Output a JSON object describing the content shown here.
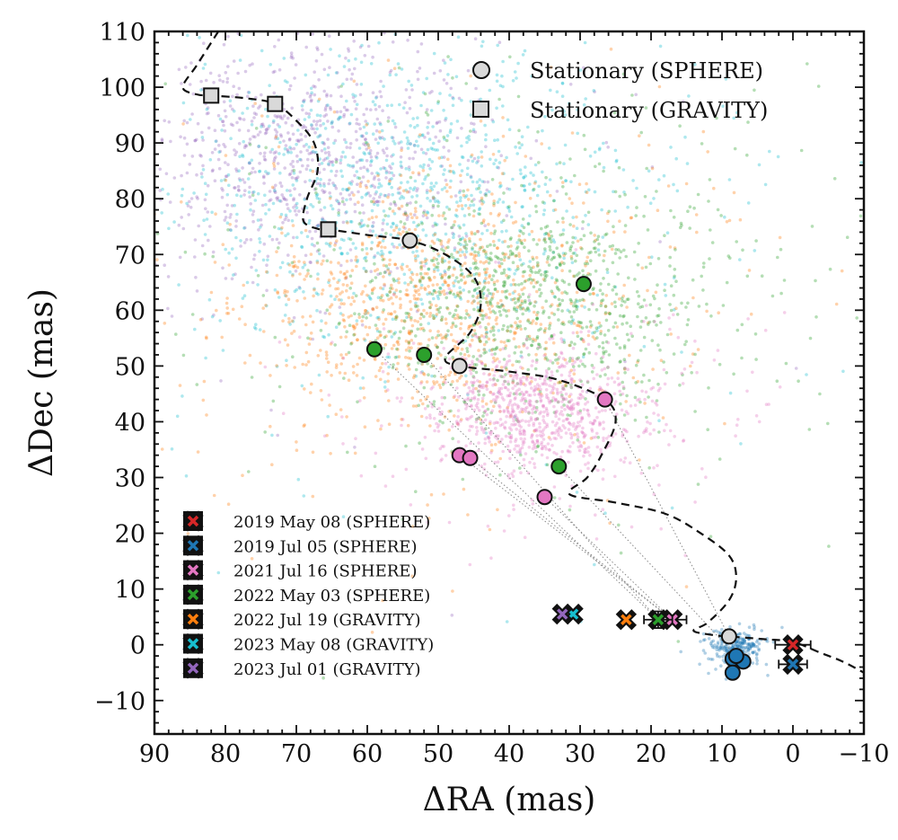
{
  "chart_data": {
    "type": "scatter",
    "xlabel": "ΔRA (mas)",
    "ylabel": "ΔDec (mas)",
    "xlim": [
      90,
      -10
    ],
    "ylim": [
      -16,
      110
    ],
    "xticks": [
      90,
      80,
      70,
      60,
      50,
      40,
      30,
      20,
      10,
      0,
      -10
    ],
    "yticks": [
      110,
      100,
      90,
      80,
      70,
      60,
      50,
      40,
      30,
      20,
      10,
      0,
      -10
    ],
    "grid": false,
    "colors": {
      "red": "#d62728",
      "blue": "#1f77b4",
      "pink": "#e377c2",
      "green": "#2ca02c",
      "orange": "#ff7f0e",
      "cyan": "#17becf",
      "purple": "#9467bd",
      "stationary": "#d9d9d9"
    },
    "stationary_legend": {
      "position": "top-right",
      "entries": [
        {
          "label": "Stationary (SPHERE)",
          "marker": "circle"
        },
        {
          "label": "Stationary (GRAVITY)",
          "marker": "square"
        }
      ]
    },
    "epoch_legend": {
      "position": "bottom-left",
      "entries": [
        {
          "label": "2019 May 08 (SPHERE)",
          "color": "#d62728"
        },
        {
          "label": "2019 Jul 05 (SPHERE)",
          "color": "#1f77b4"
        },
        {
          "label": "2021 Jul 16 (SPHERE)",
          "color": "#e377c2"
        },
        {
          "label": "2022 May 03 (SPHERE)",
          "color": "#2ca02c"
        },
        {
          "label": "2022 Jul 19 (GRAVITY)",
          "color": "#ff7f0e"
        },
        {
          "label": "2023 May 08 (GRAVITY)",
          "color": "#17becf"
        },
        {
          "label": "2023 Jul 01 (GRAVITY)",
          "color": "#9467bd"
        }
      ]
    },
    "measurements": [
      {
        "epoch": "2019 May 08 (SPHERE)",
        "x": 0,
        "y": 0,
        "xerr": 2.5,
        "yerr": 0.6,
        "color": "#d62728"
      },
      {
        "epoch": "2019 Jul 05 (SPHERE)",
        "x": 0,
        "y": -3.5,
        "xerr": 2,
        "yerr": 0.6,
        "color": "#1f77b4"
      },
      {
        "epoch": "2021 Jul 16 (SPHERE)",
        "x": 17,
        "y": 4.5,
        "xerr": 2,
        "yerr": 0.6,
        "color": "#e377c2"
      },
      {
        "epoch": "2022 May 03 (SPHERE)",
        "x": 19,
        "y": 4.5,
        "xerr": 2,
        "yerr": 1.5,
        "color": "#2ca02c"
      },
      {
        "epoch": "2022 Jul 19 (GRAVITY)",
        "x": 23.5,
        "y": 4.5,
        "xerr": 0.3,
        "yerr": 0.3,
        "color": "#ff7f0e"
      },
      {
        "epoch": "2023 May 08 (GRAVITY)",
        "x": 31,
        "y": 5.5,
        "xerr": 0.3,
        "yerr": 0.3,
        "color": "#17becf"
      },
      {
        "epoch": "2023 Jul 01 (GRAVITY)",
        "x": 32.5,
        "y": 5.5,
        "xerr": 0.3,
        "yerr": 0.3,
        "color": "#9467bd"
      }
    ],
    "stationary_sphere": [
      [
        54,
        72.5
      ],
      [
        47,
        50
      ],
      [
        9,
        1.5
      ]
    ],
    "stationary_gravity": [
      [
        82,
        98.5
      ],
      [
        73,
        97
      ],
      [
        65.5,
        74.5
      ]
    ],
    "background_points": [
      {
        "color": "#2ca02c",
        "points": [
          [
            59,
            53
          ],
          [
            52,
            52
          ],
          [
            29.5,
            64.7
          ],
          [
            33,
            32
          ]
        ]
      },
      {
        "color": "#e377c2",
        "points": [
          [
            26.5,
            44
          ],
          [
            47,
            34
          ],
          [
            45.5,
            33.5
          ],
          [
            35,
            26.5
          ]
        ]
      },
      {
        "color": "#1f77b4",
        "points": [
          [
            8.5,
            -2.5
          ],
          [
            7,
            -3
          ],
          [
            8.5,
            -5
          ],
          [
            8,
            -2
          ]
        ]
      }
    ],
    "stationary_track": [
      [
        81,
        110
      ],
      [
        84,
        104
      ],
      [
        86,
        100
      ],
      [
        84,
        98.7
      ],
      [
        82,
        98.5
      ],
      [
        77,
        98
      ],
      [
        73,
        97
      ],
      [
        70,
        94
      ],
      [
        67.5,
        90
      ],
      [
        67,
        85
      ],
      [
        68.5,
        80
      ],
      [
        69,
        76
      ],
      [
        67,
        74.6
      ],
      [
        65.5,
        74.5
      ],
      [
        60,
        73.5
      ],
      [
        54,
        72.5
      ],
      [
        49,
        70
      ],
      [
        45,
        66
      ],
      [
        44,
        61
      ],
      [
        45.5,
        56
      ],
      [
        49,
        51.5
      ],
      [
        47,
        50
      ],
      [
        40,
        49
      ],
      [
        33,
        47.5
      ],
      [
        26.5,
        44
      ],
      [
        25,
        40
      ],
      [
        27,
        34
      ],
      [
        29,
        30
      ],
      [
        31.5,
        27
      ],
      [
        25,
        25.5
      ],
      [
        18,
        23.5
      ],
      [
        13,
        20
      ],
      [
        9,
        16
      ],
      [
        8,
        12
      ],
      [
        9,
        8
      ],
      [
        12,
        4
      ],
      [
        14,
        2.5
      ],
      [
        11,
        1.7
      ],
      [
        9,
        1.5
      ],
      [
        4,
        1
      ],
      [
        0,
        0.5
      ],
      [
        -4,
        -1.5
      ],
      [
        -7,
        -3
      ],
      [
        -10,
        -5
      ]
    ],
    "posterior_clouds": [
      {
        "color": "#9467bd",
        "center": [
          68,
          88
        ],
        "sigma": [
          11,
          10
        ],
        "n": 900
      },
      {
        "color": "#17becf",
        "center": [
          55,
          80
        ],
        "sigma": [
          15,
          13
        ],
        "n": 1100
      },
      {
        "color": "#ff7f0e",
        "center": [
          50,
          62
        ],
        "sigma": [
          12,
          10
        ],
        "n": 1100
      },
      {
        "color": "#2ca02c",
        "center": [
          37,
          62
        ],
        "sigma": [
          12,
          10
        ],
        "n": 1100
      },
      {
        "color": "#e377c2",
        "center": [
          36,
          42
        ],
        "sigma": [
          7,
          5
        ],
        "n": 900
      },
      {
        "color": "#1f77b4",
        "center": [
          8,
          -0.5
        ],
        "sigma": [
          1.5,
          1.2
        ],
        "n": 250
      }
    ]
  }
}
